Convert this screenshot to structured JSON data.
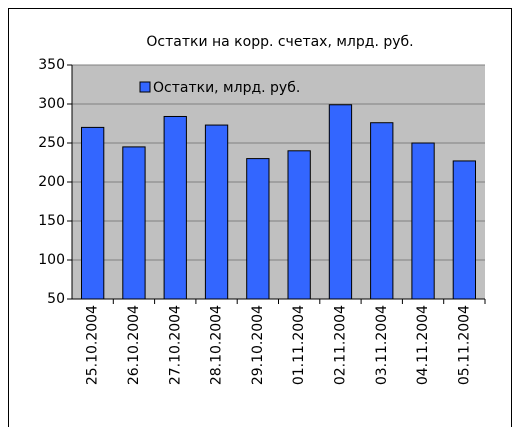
{
  "chart_data": {
    "type": "bar",
    "title": "Остатки на корр. счетах, млрд. руб.",
    "categories": [
      "25.10.2004",
      "26.10.2004",
      "27.10.2004",
      "28.10.2004",
      "29.10.2004",
      "01.11.2004",
      "02.11.2004",
      "03.11.2004",
      "04.11.2004",
      "05.11.2004"
    ],
    "series": [
      {
        "name": "Остатки, млрд. руб.",
        "color": "#3366ff",
        "values": [
          270,
          245,
          284,
          273,
          230,
          240,
          299,
          276,
          250,
          227
        ]
      }
    ],
    "ylim": [
      50,
      350
    ],
    "yticks": [
      50,
      100,
      150,
      200,
      250,
      300,
      350
    ],
    "grid": true,
    "legend": "top-left"
  }
}
